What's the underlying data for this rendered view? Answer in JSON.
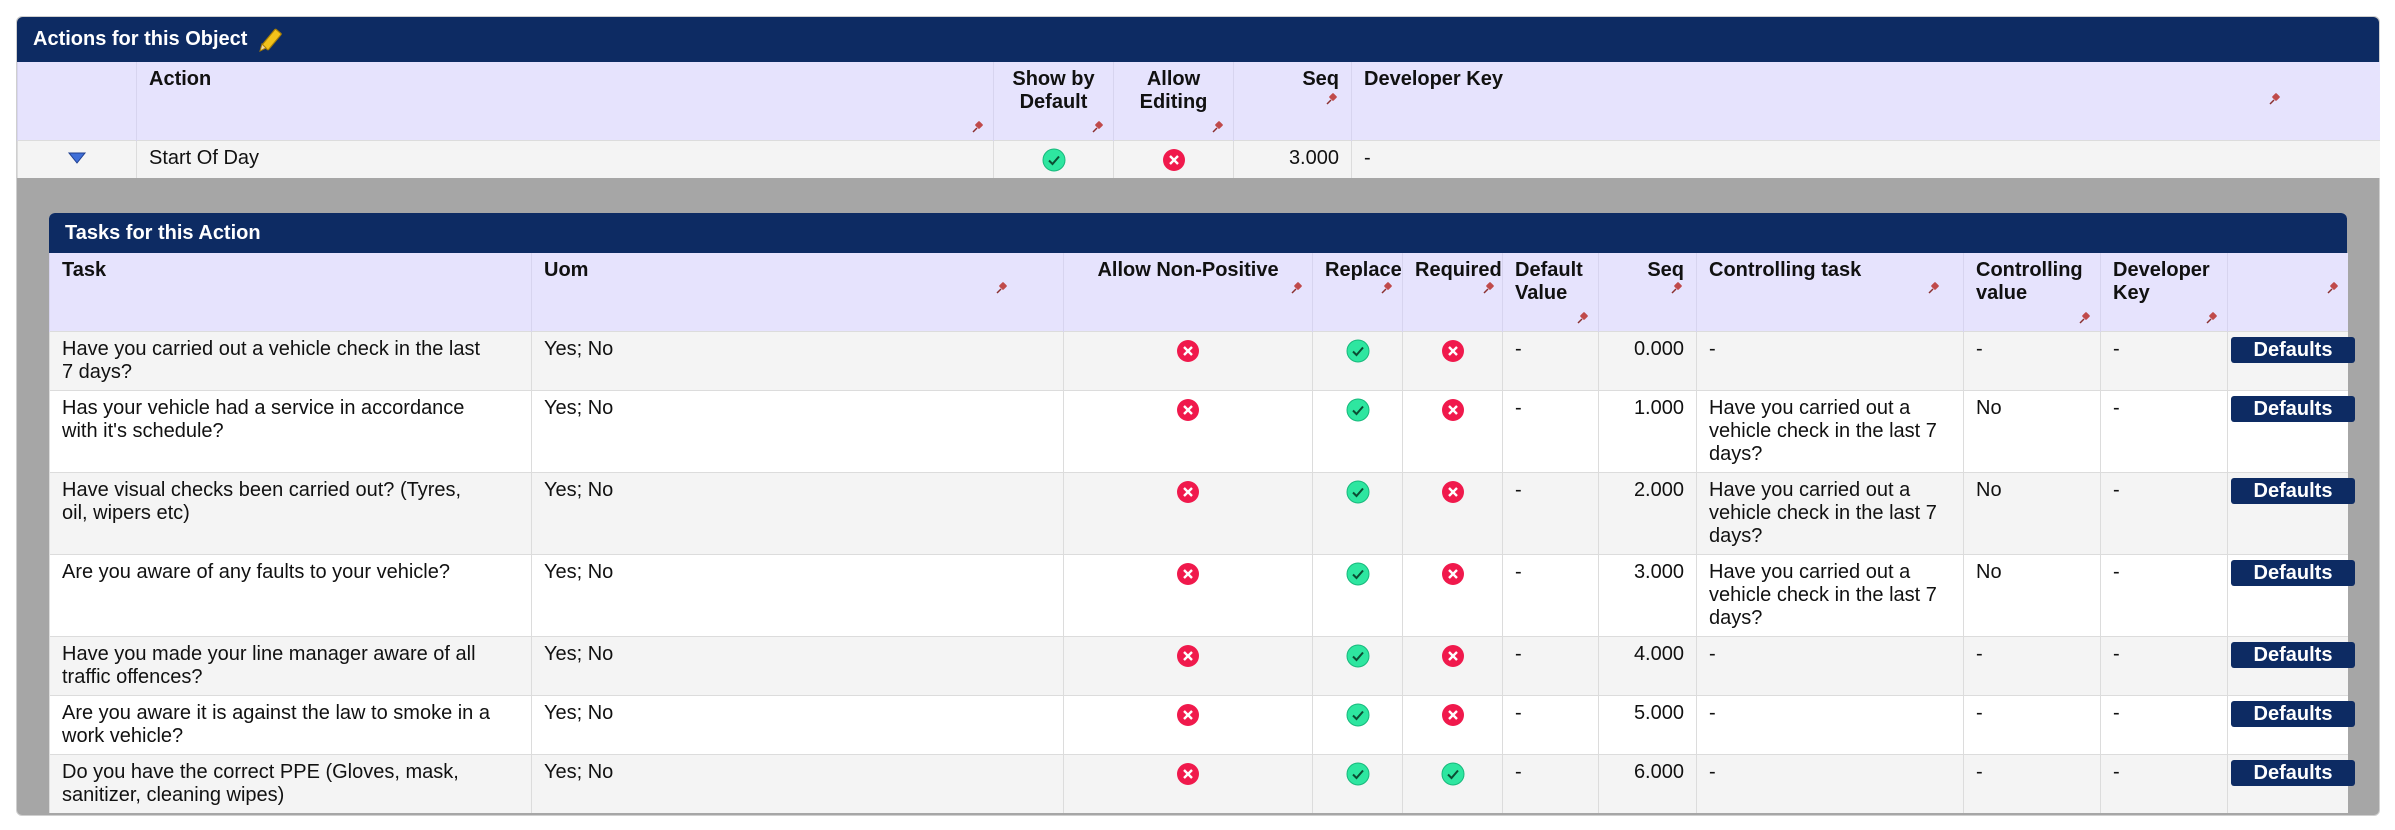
{
  "object_panel": {
    "title": "Actions for this Object",
    "columns": {
      "action": "Action",
      "show_by_default": "Show by Default",
      "allow_editing": "Allow Editing",
      "seq": "Seq",
      "developer_key": "Developer Key"
    },
    "rows": [
      {
        "action": "Start Of Day",
        "show_by_default": true,
        "allow_editing": false,
        "seq": "3.000",
        "developer_key": "-"
      }
    ]
  },
  "tasks_panel": {
    "title": "Tasks for this Action",
    "columns": {
      "task": "Task",
      "uom": "Uom",
      "allow_non_positive": "Allow Non-Positive",
      "replace": "Replace",
      "required": "Required",
      "default_value": "Default Value",
      "seq": "Seq",
      "controlling_task": "Controlling task",
      "controlling_value": "Controlling value",
      "developer_key": "Developer Key"
    },
    "button_label": "Defaults",
    "rows": [
      {
        "task": "Have you carried out a vehicle check in the last 7 days?",
        "uom": "Yes; No",
        "allow_non_positive": false,
        "replace": true,
        "required": false,
        "default_value": "-",
        "seq": "0.000",
        "controlling_task": "-",
        "controlling_value": "-",
        "developer_key": "-"
      },
      {
        "task": "Has your vehicle had a service in accordance with it's schedule?",
        "uom": "Yes; No",
        "allow_non_positive": false,
        "replace": true,
        "required": false,
        "default_value": "-",
        "seq": "1.000",
        "controlling_task": "Have you carried out a vehicle check in the last 7 days?",
        "controlling_value": "No",
        "developer_key": "-"
      },
      {
        "task": "Have visual checks been carried out? (Tyres, oil, wipers etc)",
        "uom": "Yes; No",
        "allow_non_positive": false,
        "replace": true,
        "required": false,
        "default_value": "-",
        "seq": "2.000",
        "controlling_task": "Have you carried out a vehicle check in the last 7 days?",
        "controlling_value": "No",
        "developer_key": "-"
      },
      {
        "task": "Are you aware of any faults to your vehicle?",
        "uom": "Yes; No",
        "allow_non_positive": false,
        "replace": true,
        "required": false,
        "default_value": "-",
        "seq": "3.000",
        "controlling_task": "Have you carried out a vehicle check in the last 7 days?",
        "controlling_value": "No",
        "developer_key": "-"
      },
      {
        "task": "Have you made your line manager aware of all traffic offences?",
        "uom": "Yes; No",
        "allow_non_positive": false,
        "replace": true,
        "required": false,
        "default_value": "-",
        "seq": "4.000",
        "controlling_task": "-",
        "controlling_value": "-",
        "developer_key": "-"
      },
      {
        "task": "Are you aware it is against the law to smoke in a work vehicle?",
        "uom": "Yes; No",
        "allow_non_positive": false,
        "replace": true,
        "required": false,
        "default_value": "-",
        "seq": "5.000",
        "controlling_task": "-",
        "controlling_value": "-",
        "developer_key": "-"
      },
      {
        "task": "Do you have the correct PPE (Gloves, mask, sanitizer, cleaning wipes)",
        "uom": "Yes; No",
        "allow_non_positive": false,
        "replace": true,
        "required": true,
        "default_value": "-",
        "seq": "6.000",
        "controlling_task": "-",
        "controlling_value": "-",
        "developer_key": "-"
      }
    ]
  },
  "colors": {
    "header_bg": "#0d2b63",
    "column_header_bg": "#e6e3fd",
    "check": "#2ee6a0",
    "cross": "#f0194c"
  }
}
